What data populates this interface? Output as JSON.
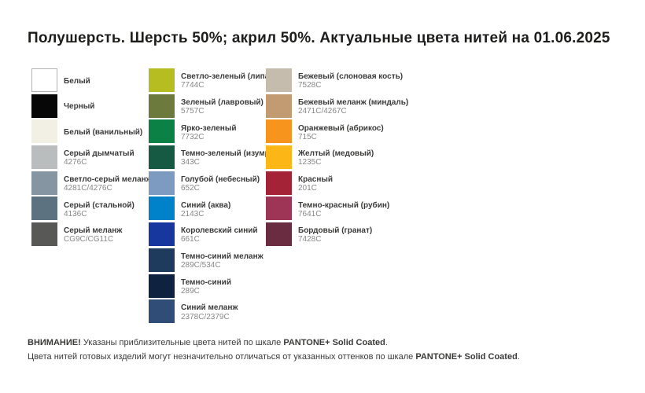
{
  "title": "Полушерсть. Шерсть 50%; акрил 50%. Актуальные цвета нитей на 01.06.2025",
  "pantone_scale": "PANTONE+ Solid Coated",
  "columns": [
    {
      "items": [
        {
          "name": "Белый",
          "code": "",
          "hex": "#ffffff",
          "border": true
        },
        {
          "name": "Черный",
          "code": "",
          "hex": "#070707"
        },
        {
          "name": "Белый (ванильный)",
          "code": "",
          "hex": "#f2f0e5"
        },
        {
          "name": "Серый дымчатый",
          "code": "4276C",
          "hex": "#b9bdbd"
        },
        {
          "name": "Светло-серый меланж",
          "code": "4281C/4276C",
          "hex": "#8596a2"
        },
        {
          "name": "Серый (стальной)",
          "code": "4136C",
          "hex": "#5d7281"
        },
        {
          "name": "Серый меланж",
          "code": "CG9C/CG11C",
          "hex": "#585857"
        }
      ]
    },
    {
      "items": [
        {
          "name": "Светло-зеленый (липа)",
          "code": "7744C",
          "hex": "#b6bd20"
        },
        {
          "name": "Зеленый (лавровый)",
          "code": "5757C",
          "hex": "#6d7a3d"
        },
        {
          "name": "Ярко-зеленый",
          "code": "7732C",
          "hex": "#0b8145"
        },
        {
          "name": "Темно-зеленый (изумруд)",
          "code": "343C",
          "hex": "#175a44"
        },
        {
          "name": "Голубой (небесный)",
          "code": "652C",
          "hex": "#7d9bc1"
        },
        {
          "name": "Синий (аква)",
          "code": "2143C",
          "hex": "#0082ca"
        },
        {
          "name": "Королевский синий",
          "code": "661C",
          "hex": "#17379f"
        },
        {
          "name": "Темно-синий меланж",
          "code": "289C/534C",
          "hex": "#1e3a5d"
        },
        {
          "name": "Темно-синий",
          "code": "289C",
          "hex": "#0f2240"
        },
        {
          "name": "Синий меланж",
          "code": "2378C/2379C",
          "hex": "#2f4d77"
        }
      ]
    },
    {
      "items": [
        {
          "name": "Бежевый (слоновая кость)",
          "code": "7528C",
          "hex": "#c5bcad"
        },
        {
          "name": "Бежевый меланж (миндаль)",
          "code": "2471C/4267C",
          "hex": "#c29b72"
        },
        {
          "name": "Оранжевый (абрикос)",
          "code": "715C",
          "hex": "#f6941d"
        },
        {
          "name": "Желтый (медовый)",
          "code": "1235C",
          "hex": "#fcb717"
        },
        {
          "name": "Красный",
          "code": "201C",
          "hex": "#a52336"
        },
        {
          "name": "Темно-красный (рубин)",
          "code": "7641C",
          "hex": "#9e3557"
        },
        {
          "name": "Бордовый (гранат)",
          "code": "7428C",
          "hex": "#692c41"
        }
      ]
    }
  ],
  "footer": {
    "lines": [
      {
        "segments": [
          {
            "text": "ВНИМАНИЕ!",
            "bold": true
          },
          {
            "text": " Указаны приблизительные цвета нитей по шкале ",
            "bold": false
          },
          {
            "text": "PANTONE+ Solid Coated",
            "bold": true
          },
          {
            "text": ".",
            "bold": false
          }
        ]
      },
      {
        "segments": [
          {
            "text": "Цвета нитей готовых изделий могут незначительно отличаться от указанных оттенков по шкале ",
            "bold": false
          },
          {
            "text": "PANTONE+ Solid Coated",
            "bold": true
          },
          {
            "text": ".",
            "bold": false
          }
        ]
      }
    ]
  }
}
